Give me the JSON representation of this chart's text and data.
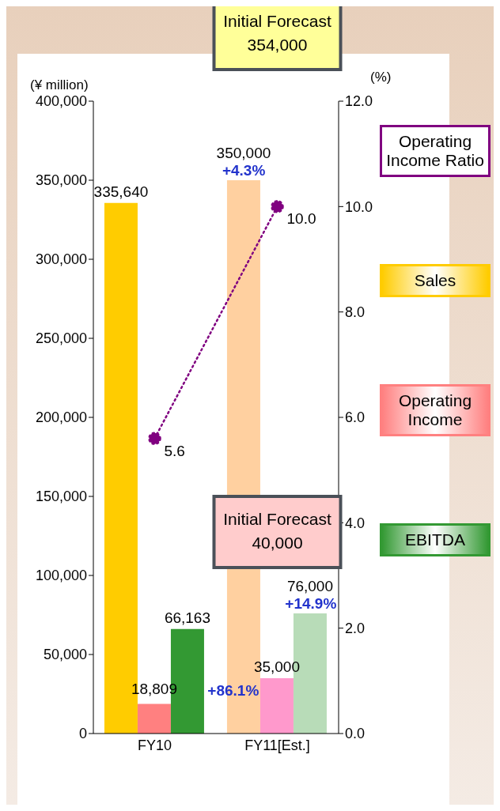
{
  "chart_data": {
    "type": "bar",
    "ylabel": "(¥ million)",
    "y2label": "(%)",
    "categories": [
      "FY10",
      "FY11[Est.]"
    ],
    "series": [
      {
        "name": "Sales",
        "color": "#ffcc00",
        "colors": [
          "#ffcc00",
          "#ffd0a0"
        ],
        "values": [
          335640,
          350000
        ],
        "value_labels": [
          "335,640",
          "350,000"
        ]
      },
      {
        "name": "Operating Income",
        "color": "#ff8080",
        "colors": [
          "#ff8080",
          "#ff99cc"
        ],
        "values": [
          18809,
          35000
        ],
        "value_labels": [
          "18,809",
          "35,000"
        ]
      },
      {
        "name": "EBITDA",
        "color": "#339933",
        "colors": [
          "#339933",
          "#b8dcb8"
        ],
        "values": [
          66163,
          76000
        ],
        "value_labels": [
          "66,163",
          "76,000"
        ]
      },
      {
        "name": "Operating Income Ratio",
        "type": "line",
        "axis": "y2",
        "color": "#800080",
        "marker": "circle",
        "line_style": "dotted",
        "values": [
          5.6,
          10.0
        ],
        "value_labels": [
          "5.6",
          "10.0"
        ]
      }
    ],
    "ylim": [
      0,
      400000
    ],
    "yticks": [
      {
        "value": 0,
        "label": "0"
      },
      {
        "value": 50000,
        "label": "50,000"
      },
      {
        "value": 100000,
        "label": "100,000"
      },
      {
        "value": 150000,
        "label": "150,000"
      },
      {
        "value": 200000,
        "label": "200,000"
      },
      {
        "value": 250000,
        "label": "250,000"
      },
      {
        "value": 300000,
        "label": "300,000"
      },
      {
        "value": 350000,
        "label": "350,000"
      },
      {
        "value": 400000,
        "label": "400,000"
      }
    ],
    "y2lim": [
      0,
      12
    ],
    "y2ticks": [
      {
        "value": 0,
        "label": "0.0"
      },
      {
        "value": 2,
        "label": "2.0"
      },
      {
        "value": 4,
        "label": "4.0"
      },
      {
        "value": 6,
        "label": "6.0"
      },
      {
        "value": 8,
        "label": "8.0"
      },
      {
        "value": 10,
        "label": "10.0"
      },
      {
        "value": 12,
        "label": "12.0"
      }
    ],
    "annotations": [
      "Initial Forecast\n354,000",
      "Initial Forecast\n40,000",
      "+4.3%",
      "+86.1%",
      "+14.9%"
    ],
    "legend": "right"
  }
}
